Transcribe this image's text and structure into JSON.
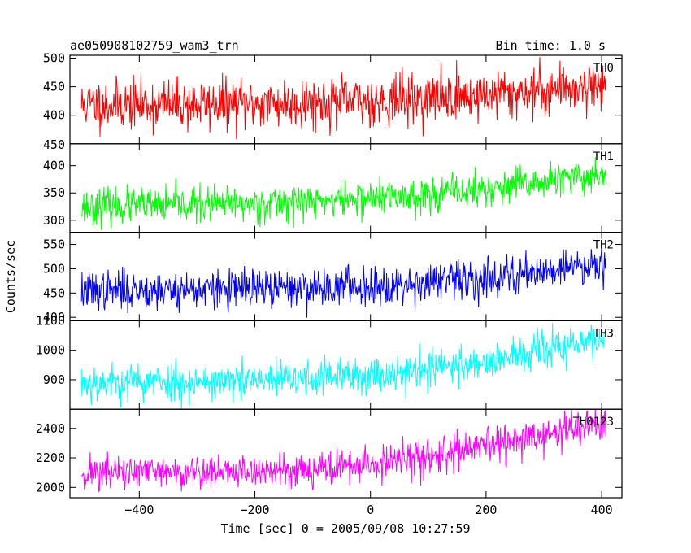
{
  "chart_data": {
    "type": "line",
    "title": "ae050908102759_wam3_trn",
    "bin_time_text": "Bin time: 1.0 s",
    "xlabel": "Time [sec] 0 = 2005/09/08 10:27:59",
    "ylabel": "Counts/sec",
    "xlim": [
      -520,
      435
    ],
    "x_ticks": [
      -400,
      -200,
      0,
      200,
      400
    ],
    "x_tick_labels": [
      "−400",
      "−200",
      "0",
      "200",
      "400"
    ],
    "x_start": -500,
    "x_end": 408,
    "panels": [
      {
        "name": "TH0",
        "color": "#ff0000",
        "ylim": [
          350,
          505
        ],
        "y_ticks": [
          400,
          450,
          500
        ],
        "y_tick_labels": [
          "400",
          "450",
          "500"
        ],
        "edge_label": "450",
        "trend": [
          [
            -500,
            418
          ],
          [
            -200,
            420
          ],
          [
            0,
            425
          ],
          [
            200,
            435
          ],
          [
            408,
            455
          ]
        ],
        "noise": 22,
        "seed": 11
      },
      {
        "name": "TH1",
        "color": "#00ff00",
        "ylim": [
          278,
          440
        ],
        "y_ticks": [
          300,
          350,
          400
        ],
        "y_tick_labels": [
          "300",
          "350",
          "400"
        ],
        "trend": [
          [
            -500,
            325
          ],
          [
            -200,
            330
          ],
          [
            0,
            340
          ],
          [
            200,
            355
          ],
          [
            408,
            385
          ]
        ],
        "noise": 16,
        "seed": 23
      },
      {
        "name": "TH2",
        "color": "#0000ff",
        "ylim": [
          393,
          575
        ],
        "y_ticks": [
          400,
          450,
          500,
          550
        ],
        "y_tick_labels": [
          "400",
          "450",
          "500",
          "550"
        ],
        "trend": [
          [
            -500,
            455
          ],
          [
            -200,
            458
          ],
          [
            0,
            465
          ],
          [
            200,
            480
          ],
          [
            408,
            515
          ]
        ],
        "noise": 20,
        "seed": 37
      },
      {
        "name": "TH3",
        "color": "#00ffff",
        "ylim": [
          800,
          1100
        ],
        "y_ticks": [
          900,
          1000,
          1100
        ],
        "y_tick_labels": [
          "900",
          "1000",
          "1100"
        ],
        "trend": [
          [
            -500,
            890
          ],
          [
            -200,
            895
          ],
          [
            0,
            915
          ],
          [
            200,
            960
          ],
          [
            408,
            1040
          ]
        ],
        "noise": 32,
        "seed": 53
      },
      {
        "name": "TH0123",
        "color": "#ff00ff",
        "ylim": [
          1930,
          2530
        ],
        "y_ticks": [
          2000,
          2200,
          2400
        ],
        "y_tick_labels": [
          "2000",
          "2200",
          "2400"
        ],
        "trend": [
          [
            -500,
            2100
          ],
          [
            -200,
            2105
          ],
          [
            0,
            2150
          ],
          [
            200,
            2270
          ],
          [
            408,
            2440
          ]
        ],
        "noise": 60,
        "seed": 71
      }
    ]
  }
}
